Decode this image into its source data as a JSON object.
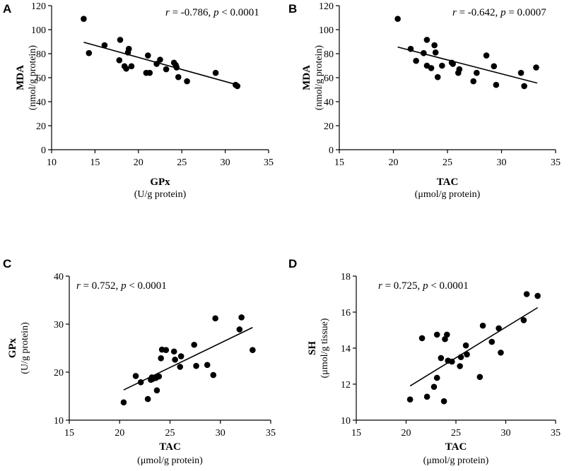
{
  "chart_data": [
    {
      "panel": "A",
      "type": "scatter",
      "xlabel": "GPx",
      "xsublabel": "(U/g protein)",
      "ylabel": "MDA",
      "ysublabel": "(nmol/g protein)",
      "annotation": {
        "r_symbol": "r",
        "r_value": " = -0.786, ",
        "p_symbol": "p",
        "p_value": " < 0.0001"
      },
      "xlim": [
        10,
        35
      ],
      "ylim": [
        0,
        120
      ],
      "xticks": [
        "10",
        "15",
        "20",
        "25",
        "30",
        "35"
      ],
      "yticks": [
        "0",
        "20",
        "40",
        "60",
        "80",
        "100",
        "120"
      ],
      "points": [
        [
          13.7,
          109
        ],
        [
          14.3,
          80.5
        ],
        [
          16.1,
          87
        ],
        [
          17.8,
          74.5
        ],
        [
          17.9,
          91.5
        ],
        [
          18.4,
          69.5
        ],
        [
          18.6,
          67.5
        ],
        [
          18.8,
          81
        ],
        [
          18.9,
          84
        ],
        [
          19.2,
          69.5
        ],
        [
          20.9,
          64
        ],
        [
          21.1,
          78.5
        ],
        [
          21.3,
          64
        ],
        [
          22.1,
          71.5
        ],
        [
          22.5,
          75
        ],
        [
          23.2,
          67
        ],
        [
          24.1,
          72.5
        ],
        [
          24.3,
          70.5
        ],
        [
          24.4,
          68.5
        ],
        [
          24.6,
          60.5
        ],
        [
          25.6,
          57
        ],
        [
          28.9,
          64
        ],
        [
          31.2,
          54
        ],
        [
          31.4,
          53
        ]
      ],
      "fit": [
        [
          13.7,
          89.5
        ],
        [
          31.4,
          54
        ]
      ]
    },
    {
      "panel": "B",
      "type": "scatter",
      "xlabel": "TAC",
      "xsublabel": "(μmol/g protein)",
      "ylabel": "MDA",
      "ysublabel": "(nmol/g protein)",
      "annotation": {
        "r_symbol": "r",
        "r_value": " = -0.642, ",
        "p_symbol": "p",
        "p_value": " = 0.0007"
      },
      "xlim": [
        15,
        35
      ],
      "ylim": [
        0,
        120
      ],
      "xticks": [
        "15",
        "20",
        "25",
        "30",
        "35"
      ],
      "yticks": [
        "0",
        "20",
        "40",
        "60",
        "80",
        "100",
        "120"
      ],
      "points": [
        [
          20.4,
          109
        ],
        [
          21.6,
          84
        ],
        [
          22.1,
          74
        ],
        [
          22.8,
          80.5
        ],
        [
          23.1,
          91.5
        ],
        [
          23.1,
          70
        ],
        [
          23.5,
          68
        ],
        [
          23.8,
          87
        ],
        [
          23.9,
          81
        ],
        [
          24.1,
          60.5
        ],
        [
          24.5,
          70
        ],
        [
          25.4,
          72.5
        ],
        [
          25.5,
          71.5
        ],
        [
          26.0,
          64
        ],
        [
          26.1,
          67
        ],
        [
          27.4,
          57
        ],
        [
          27.7,
          64
        ],
        [
          28.6,
          78.5
        ],
        [
          29.3,
          69.5
        ],
        [
          29.5,
          54
        ],
        [
          31.8,
          64
        ],
        [
          32.1,
          53
        ],
        [
          33.2,
          68.5
        ]
      ],
      "fit": [
        [
          20.4,
          85.5
        ],
        [
          33.3,
          55.5
        ]
      ]
    },
    {
      "panel": "C",
      "type": "scatter",
      "xlabel": "TAC",
      "xsublabel": "(μmol/g protein)",
      "ylabel": "GPx",
      "ysublabel": "(U/g protein)",
      "annotation": {
        "r_symbol": "r",
        "r_value": " = 0.752, ",
        "p_symbol": "p",
        "p_value": " < 0.0001"
      },
      "xlim": [
        15,
        35
      ],
      "ylim": [
        10,
        40
      ],
      "xticks": [
        "15",
        "20",
        "25",
        "30",
        "35"
      ],
      "yticks": [
        "10",
        "20",
        "30",
        "40"
      ],
      "points": [
        [
          20.4,
          13.7
        ],
        [
          21.6,
          19.2
        ],
        [
          22.1,
          17.9
        ],
        [
          22.8,
          14.4
        ],
        [
          23.1,
          18.4
        ],
        [
          23.2,
          18.9
        ],
        [
          23.3,
          18.6
        ],
        [
          23.6,
          18.8
        ],
        [
          23.7,
          16.2
        ],
        [
          23.9,
          19.1
        ],
        [
          24.1,
          22.9
        ],
        [
          24.2,
          24.7
        ],
        [
          24.6,
          24.6
        ],
        [
          25.4,
          24.3
        ],
        [
          25.5,
          22.6
        ],
        [
          26.0,
          21.1
        ],
        [
          26.1,
          23.3
        ],
        [
          27.4,
          25.7
        ],
        [
          27.6,
          21.3
        ],
        [
          28.7,
          21.5
        ],
        [
          29.3,
          19.4
        ],
        [
          29.5,
          31.2
        ],
        [
          31.9,
          28.9
        ],
        [
          32.1,
          31.4
        ],
        [
          33.2,
          24.6
        ]
      ],
      "fit": [
        [
          20.4,
          16.3
        ],
        [
          33.2,
          29.3
        ]
      ]
    },
    {
      "panel": "D",
      "type": "scatter",
      "xlabel": "TAC",
      "xsublabel": "(μmol/g protein)",
      "ylabel": "SH",
      "ysublabel": "(μmol/g tissue)",
      "annotation": {
        "r_symbol": "r",
        "r_value": " = 0.725, ",
        "p_symbol": "p",
        "p_value": " < 0.0001"
      },
      "xlim": [
        15,
        35
      ],
      "ylim": [
        10,
        18
      ],
      "xticks": [
        "15",
        "20",
        "25",
        "30",
        "35"
      ],
      "yticks": [
        "10",
        "12",
        "14",
        "16",
        "18"
      ],
      "points": [
        [
          20.4,
          11.15
        ],
        [
          21.6,
          14.55
        ],
        [
          22.1,
          11.3
        ],
        [
          22.8,
          11.85
        ],
        [
          23.1,
          12.35
        ],
        [
          23.1,
          14.75
        ],
        [
          23.5,
          13.45
        ],
        [
          23.8,
          11.05
        ],
        [
          23.9,
          14.5
        ],
        [
          24.1,
          14.75
        ],
        [
          24.2,
          13.3
        ],
        [
          24.6,
          13.25
        ],
        [
          25.4,
          13.0
        ],
        [
          25.5,
          13.5
        ],
        [
          26.0,
          14.15
        ],
        [
          26.1,
          13.65
        ],
        [
          27.4,
          12.4
        ],
        [
          27.7,
          15.25
        ],
        [
          28.6,
          14.35
        ],
        [
          29.3,
          15.1
        ],
        [
          29.5,
          13.75
        ],
        [
          31.8,
          15.55
        ],
        [
          32.1,
          17.0
        ],
        [
          33.2,
          16.9
        ]
      ],
      "fit": [
        [
          20.4,
          11.9
        ],
        [
          33.2,
          16.25
        ]
      ]
    }
  ]
}
